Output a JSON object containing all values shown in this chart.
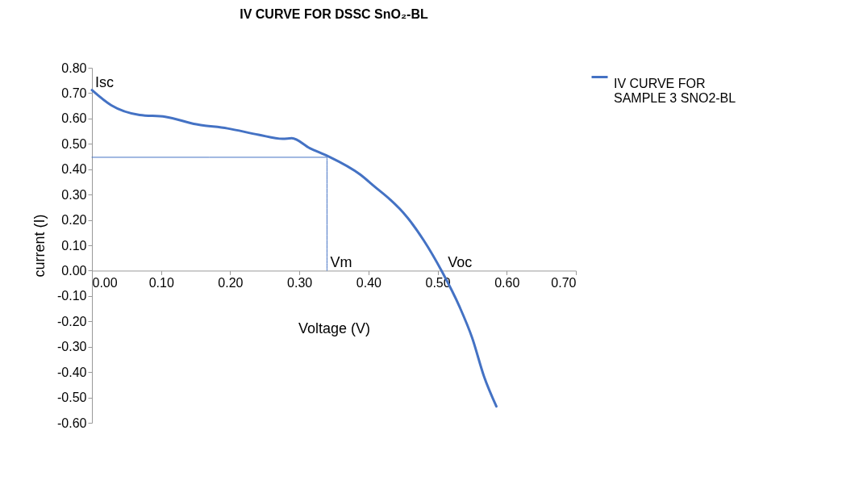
{
  "chart_data": {
    "type": "line",
    "title": "IV CURVE FOR DSSC SnO₂-BL",
    "xlabel": "Voltage (V)",
    "ylabel": "current (I)",
    "series": [
      {
        "name": "IV CURVE FOR SAMPLE 3 SNO2-BL",
        "color": "#4472c4",
        "x": [
          0,
          0.028,
          0.069,
          0.106,
          0.151,
          0.196,
          0.241,
          0.276,
          0.289,
          0.315,
          0.341,
          0.388,
          0.409,
          0.431,
          0.45,
          0.48,
          0.506,
          0.532,
          0.55,
          0.567,
          0.585
        ],
        "values": [
          0.712,
          0.652,
          0.614,
          0.607,
          0.577,
          0.561,
          0.536,
          0.52,
          0.522,
          0.483,
          0.452,
          0.379,
          0.331,
          0.281,
          0.23,
          0.119,
          -0.002,
          -0.144,
          -0.265,
          -0.416,
          -0.535
        ]
      },
      {
        "color": "#4472c4",
        "x": [
          0,
          0.34,
          0.34
        ],
        "values": [
          0.447,
          0.447,
          0
        ]
      }
    ],
    "annotations": [
      {
        "text": "Isc",
        "x": 0,
        "y": 0.71
      },
      {
        "text": "Vm",
        "x": 0.34,
        "y": 0
      },
      {
        "text": "Voc",
        "x": 0.51,
        "y": 0
      }
    ],
    "xlim": [
      0,
      0.7
    ],
    "xticks": [
      {
        "value": 0,
        "label": "0.00"
      },
      {
        "value": 0.1,
        "label": "0.10"
      },
      {
        "value": 0.2,
        "label": "0.20"
      },
      {
        "value": 0.3,
        "label": "0.30"
      },
      {
        "value": 0.4,
        "label": "0.40"
      },
      {
        "value": 0.5,
        "label": "0.50"
      },
      {
        "value": 0.6,
        "label": "0.60"
      },
      {
        "value": 0.7,
        "label": "0.70"
      }
    ],
    "ylim": [
      -0.6,
      0.8
    ],
    "yticks": [
      {
        "value": -0.6,
        "label": "-0.60"
      },
      {
        "value": -0.5,
        "label": "-0.50"
      },
      {
        "value": -0.4,
        "label": "-0.40"
      },
      {
        "value": -0.3,
        "label": "-0.30"
      },
      {
        "value": -0.2,
        "label": "-0.20"
      },
      {
        "value": -0.1,
        "label": "-0.10"
      },
      {
        "value": 0,
        "label": "0.00"
      },
      {
        "value": 0.1,
        "label": "0.10"
      },
      {
        "value": 0.2,
        "label": "0.20"
      },
      {
        "value": 0.3,
        "label": "0.30"
      },
      {
        "value": 0.4,
        "label": "0.40"
      },
      {
        "value": 0.5,
        "label": "0.50"
      },
      {
        "value": 0.6,
        "label": "0.60"
      },
      {
        "value": 0.7,
        "label": "0.70"
      },
      {
        "value": 0.8,
        "label": "0.80"
      }
    ],
    "grid": false,
    "legend": "right",
    "marker": "none",
    "line_style": "solid"
  }
}
